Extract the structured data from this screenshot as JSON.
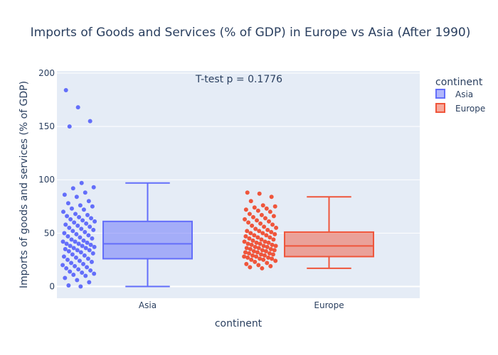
{
  "chart_data": {
    "type": "box",
    "title": "Imports of Goods and Services (% of GDP) in Europe vs Asia (After 1990)",
    "xlabel": "continent",
    "ylabel": "Imports of goods and services (% of GDP)",
    "ylim": [
      -11,
      202
    ],
    "yticks": [
      0,
      50,
      100,
      150,
      200
    ],
    "grid": true,
    "annotation": "T-test p = 0.1776",
    "legend": {
      "title": "continent",
      "position": "right"
    },
    "categories": [
      "Asia",
      "Europe"
    ],
    "series": [
      {
        "name": "Asia",
        "color": "#636efa",
        "box": {
          "lowerfence": 0,
          "q1": 26,
          "median": 40,
          "q3": 61,
          "upperfence": 97
        },
        "points": [
          184,
          168,
          155,
          150,
          97,
          93,
          92,
          88,
          86,
          84,
          80,
          78,
          76,
          75,
          73,
          72,
          70,
          68,
          67,
          66,
          65,
          64,
          63,
          62,
          61,
          60,
          59,
          58,
          57,
          56,
          55,
          54,
          53,
          52,
          51,
          50,
          49,
          48,
          47,
          46,
          45,
          44,
          43,
          42,
          42,
          41,
          40,
          40,
          39,
          38,
          38,
          37,
          36,
          36,
          35,
          34,
          34,
          33,
          32,
          31,
          30,
          29,
          28,
          27,
          26,
          25,
          24,
          23,
          22,
          21,
          20,
          19,
          18,
          17,
          16,
          15,
          14,
          13,
          12,
          11,
          10,
          8,
          6,
          4,
          1,
          0
        ]
      },
      {
        "name": "Europe",
        "color": "#ef553b",
        "box": {
          "lowerfence": 17,
          "q1": 28,
          "median": 38,
          "q3": 51,
          "upperfence": 84
        },
        "points": [
          88,
          87,
          84,
          80,
          76,
          75,
          74,
          73,
          72,
          71,
          70,
          68,
          67,
          66,
          65,
          64,
          63,
          62,
          61,
          60,
          59,
          58,
          57,
          56,
          55,
          54,
          53,
          52,
          52,
          51,
          50,
          50,
          49,
          48,
          48,
          47,
          46,
          46,
          45,
          44,
          44,
          43,
          42,
          42,
          41,
          41,
          40,
          40,
          39,
          39,
          38,
          38,
          37,
          37,
          36,
          36,
          35,
          35,
          34,
          34,
          33,
          33,
          32,
          32,
          31,
          31,
          30,
          30,
          29,
          29,
          28,
          28,
          27,
          27,
          26,
          26,
          25,
          25,
          24,
          23,
          22,
          21,
          20,
          19,
          18,
          17
        ]
      }
    ]
  }
}
